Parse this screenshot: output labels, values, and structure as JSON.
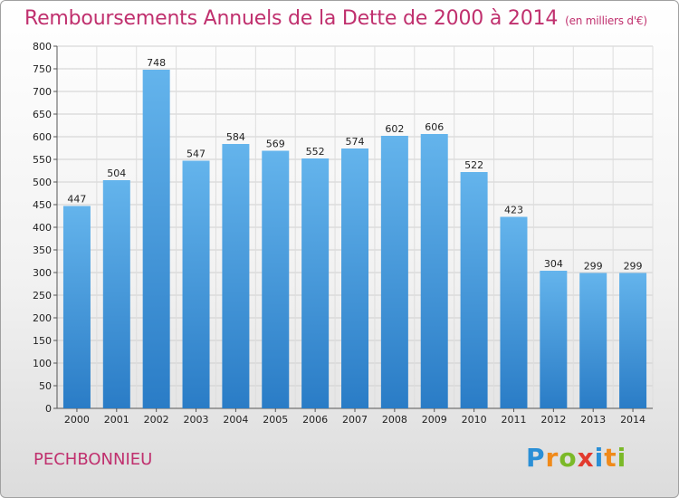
{
  "title": "Remboursements Annuels de la Dette de 2000 à 2014",
  "unit": "(en milliers d'€)",
  "commune": "PECHBONNIEU",
  "logo": {
    "letters": [
      "P",
      "r",
      "o",
      "x",
      "i",
      "t",
      "i"
    ],
    "colors": [
      "#2a8fd6",
      "#f08a1a",
      "#7bb928",
      "#e23a2e",
      "#2a8fd6",
      "#f08a1a",
      "#7bb928"
    ]
  },
  "colors": {
    "title": "#c0306e",
    "bar_top": "#64b4ec",
    "bar_bottom": "#2a7cc6"
  },
  "chart_data": {
    "type": "bar",
    "title": "Remboursements Annuels de la Dette de 2000 à 2014",
    "xlabel": "",
    "ylabel": "",
    "categories": [
      "2000",
      "2001",
      "2002",
      "2003",
      "2004",
      "2005",
      "2006",
      "2007",
      "2008",
      "2009",
      "2010",
      "2011",
      "2012",
      "2013",
      "2014"
    ],
    "values": [
      447,
      504,
      748,
      547,
      584,
      569,
      552,
      574,
      602,
      606,
      522,
      423,
      304,
      299,
      299
    ],
    "ylim": [
      0,
      800
    ],
    "yticks": [
      0,
      50,
      100,
      150,
      200,
      250,
      300,
      350,
      400,
      450,
      500,
      550,
      600,
      650,
      700,
      750,
      800
    ],
    "grid": true
  }
}
